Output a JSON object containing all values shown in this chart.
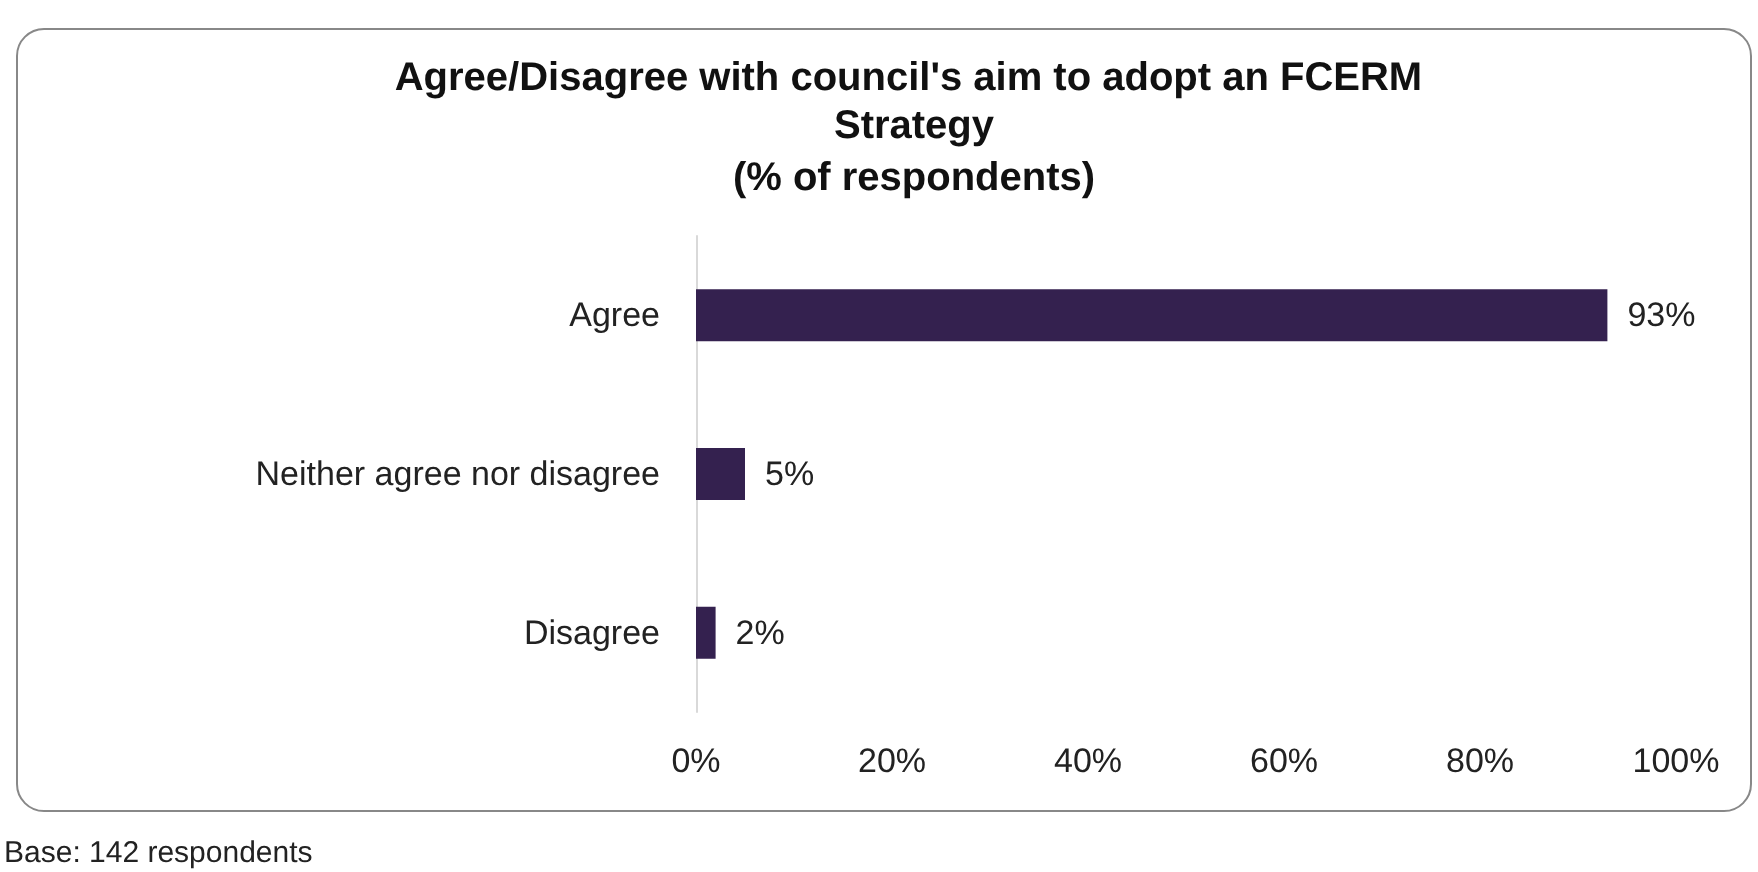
{
  "chart_data": {
    "type": "bar",
    "orientation": "horizontal",
    "title": "Agree/Disagree with council's aim to adopt an FCERM Strategy",
    "subtitle": "(% of respondents)",
    "categories": [
      "Agree",
      "Neither agree nor disagree",
      "Disagree"
    ],
    "values": [
      93,
      5,
      2
    ],
    "value_labels": [
      "93%",
      "5%",
      "2%"
    ],
    "color": "#34214f",
    "xlim": [
      0,
      100
    ],
    "xticks": [
      {
        "value": 0,
        "label": "0%"
      },
      {
        "value": 20,
        "label": "20%"
      },
      {
        "value": 40,
        "label": "40%"
      },
      {
        "value": 60,
        "label": "60%"
      },
      {
        "value": 80,
        "label": "80%"
      },
      {
        "value": 100,
        "label": "100%"
      }
    ],
    "grid": false,
    "annotations": [
      "Base: 142 respondents"
    ]
  }
}
